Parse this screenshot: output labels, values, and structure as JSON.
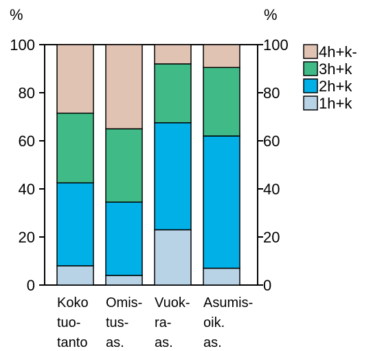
{
  "chart_data": {
    "type": "bar",
    "stacked": true,
    "categories": [
      [
        "Koko",
        "tuo-",
        "tanto"
      ],
      [
        "Omis-",
        "tus-",
        "as."
      ],
      [
        "Vuok-",
        "ra-",
        "as."
      ],
      [
        "Asumis-",
        "oik.",
        "as."
      ]
    ],
    "series": [
      {
        "name": "1h+k",
        "color": "#b8d3e6",
        "values": [
          8,
          4,
          23,
          7
        ]
      },
      {
        "name": "2h+k",
        "color": "#00b0e6",
        "values": [
          34.5,
          30.5,
          44.5,
          55
        ]
      },
      {
        "name": "3h+k",
        "color": "#40bb87",
        "values": [
          29,
          30.5,
          24.5,
          28.5
        ]
      },
      {
        "name": "4h+k-",
        "color": "#e1c3b3",
        "values": [
          28.5,
          35,
          8,
          9.5
        ]
      }
    ],
    "y_unit_left": "%",
    "y_unit_right": "%",
    "ylim": [
      0,
      100
    ],
    "yticks": [
      0,
      20,
      40,
      60,
      80,
      100
    ],
    "legend_position": "top-right",
    "grid": false
  }
}
